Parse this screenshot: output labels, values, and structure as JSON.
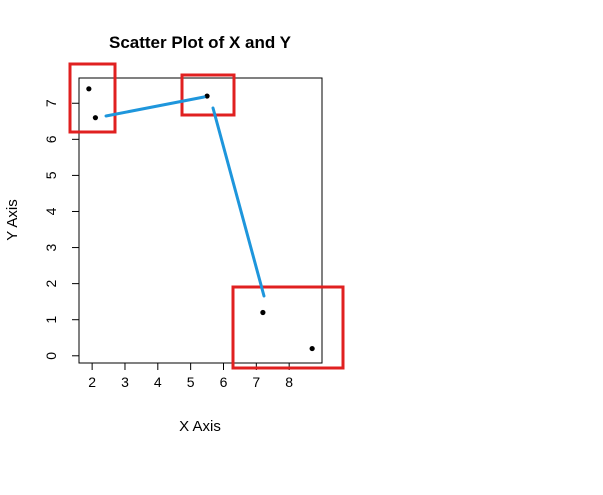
{
  "chart_data": {
    "type": "scatter",
    "title": "Scatter Plot of X and Y",
    "xlabel": "X Axis",
    "ylabel": "Y Axis",
    "xlim": [
      1.6,
      9.0
    ],
    "ylim": [
      -0.2,
      7.7
    ],
    "x_ticks": [
      2,
      3,
      4,
      5,
      6,
      7,
      8
    ],
    "y_ticks": [
      0,
      1,
      2,
      3,
      4,
      5,
      6,
      7
    ],
    "grid": false,
    "points": [
      {
        "x": 1.9,
        "y": 7.4
      },
      {
        "x": 2.1,
        "y": 6.6
      },
      {
        "x": 5.5,
        "y": 7.2
      },
      {
        "x": 7.2,
        "y": 1.2
      },
      {
        "x": 8.7,
        "y": 0.2
      }
    ],
    "annotation_color": "#e02020",
    "arrow_color": "#1e96dc",
    "point_color": "#000000"
  }
}
